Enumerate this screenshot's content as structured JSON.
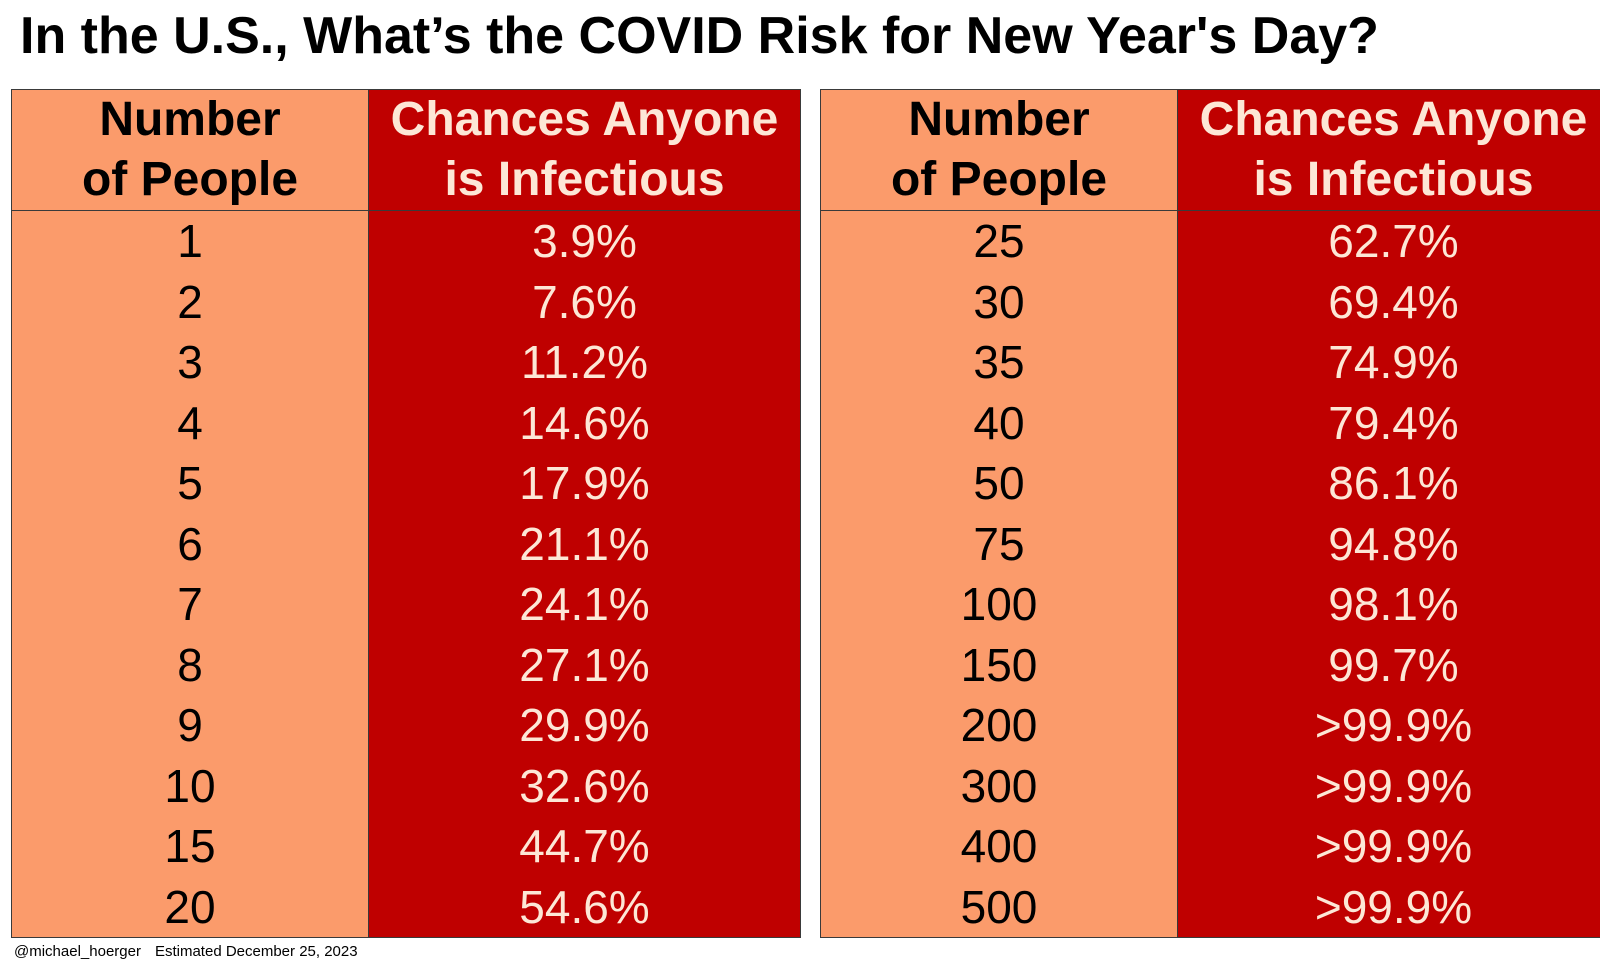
{
  "title": "In the U.S., What’s the COVID Risk for New Year's Day?",
  "headers": {
    "people_line1": "Number",
    "people_line2": "of People",
    "chance_line1": "Chances Anyone",
    "chance_line2": "is Infectious"
  },
  "footer": {
    "handle": "@michael_hoerger",
    "note": "Estimated December 25, 2023"
  },
  "colors": {
    "people_column": "#fb9b6b",
    "chance_column": "#bf0000",
    "chance_text": "#fde7d6"
  },
  "chart_data": {
    "type": "table",
    "title": "In the U.S., What’s the COVID Risk for New Year's Day?",
    "columns": [
      "Number of People",
      "Chances Anyone is Infectious"
    ],
    "left_table": [
      {
        "people": "1",
        "chance": "3.9%"
      },
      {
        "people": "2",
        "chance": "7.6%"
      },
      {
        "people": "3",
        "chance": "11.2%"
      },
      {
        "people": "4",
        "chance": "14.6%"
      },
      {
        "people": "5",
        "chance": "17.9%"
      },
      {
        "people": "6",
        "chance": "21.1%"
      },
      {
        "people": "7",
        "chance": "24.1%"
      },
      {
        "people": "8",
        "chance": "27.1%"
      },
      {
        "people": "9",
        "chance": "29.9%"
      },
      {
        "people": "10",
        "chance": "32.6%"
      },
      {
        "people": "15",
        "chance": "44.7%"
      },
      {
        "people": "20",
        "chance": "54.6%"
      }
    ],
    "right_table": [
      {
        "people": "25",
        "chance": "62.7%"
      },
      {
        "people": "30",
        "chance": "69.4%"
      },
      {
        "people": "35",
        "chance": "74.9%"
      },
      {
        "people": "40",
        "chance": "79.4%"
      },
      {
        "people": "50",
        "chance": "86.1%"
      },
      {
        "people": "75",
        "chance": "94.8%"
      },
      {
        "people": "100",
        "chance": "98.1%"
      },
      {
        "people": "150",
        "chance": "99.7%"
      },
      {
        "people": "200",
        "chance": ">99.9%"
      },
      {
        "people": "300",
        "chance": ">99.9%"
      },
      {
        "people": "400",
        "chance": ">99.9%"
      },
      {
        "people": "500",
        "chance": ">99.9%"
      }
    ]
  }
}
